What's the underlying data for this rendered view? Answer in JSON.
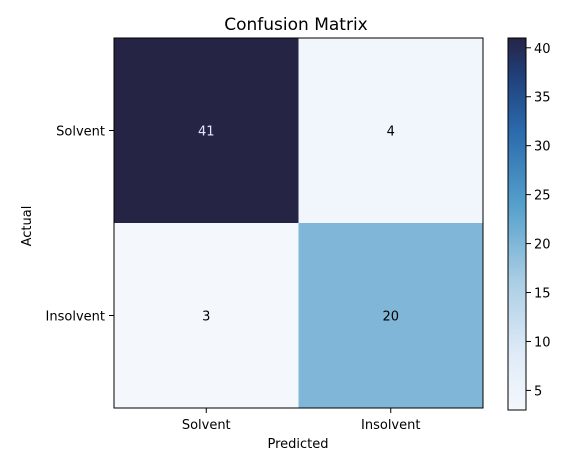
{
  "chart_data": {
    "type": "heatmap",
    "title": "Confusion Matrix",
    "xlabel": "Predicted",
    "ylabel": "Actual",
    "x_categories": [
      "Solvent",
      "Insolvent"
    ],
    "y_categories": [
      "Solvent",
      "Insolvent"
    ],
    "values": [
      [
        41,
        4
      ],
      [
        3,
        20
      ]
    ],
    "colormap": "Blues-like (light to dark navy)",
    "colorbar": {
      "range": [
        3,
        41
      ],
      "ticks": [
        5,
        10,
        15,
        20,
        25,
        30,
        35,
        40
      ],
      "tick_labels": [
        "5",
        "10",
        "15",
        "20",
        "25",
        "30",
        "35",
        "40"
      ]
    },
    "colors": {
      "low": "#f4f8fd",
      "high": "#262445",
      "text_dark": "#000000",
      "text_light": "#dfe7ff"
    }
  }
}
